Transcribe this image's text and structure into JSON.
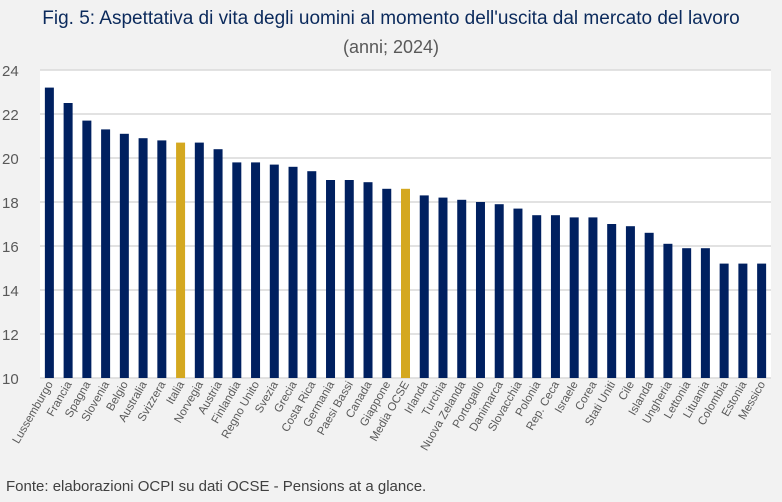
{
  "chart_data": {
    "type": "bar",
    "title": "Fig. 5: Aspettativa di vita degli uomini al momento dell'uscita dal mercato del lavoro",
    "subtitle": "(anni; 2024)",
    "xlabel": "",
    "ylabel": "",
    "ylim": [
      10,
      24
    ],
    "yticks": [
      "10",
      "12",
      "14",
      "16",
      "18",
      "20",
      "22",
      "24"
    ],
    "grid": true,
    "categories": [
      "Lussemburgo",
      "Francia",
      "Spagna",
      "Slovenia",
      "Belgio",
      "Australia",
      "Svizzera",
      "Italia",
      "Norvegia",
      "Austria",
      "Finlandia",
      "Regno Unito",
      "Svezia",
      "Grecia",
      "Costa Rica",
      "Germania",
      "Paesi Bassi",
      "Canada",
      "Giappone",
      "Media OCSE",
      "Irlanda",
      "Turchia",
      "Nuova Zelanda",
      "Portogallo",
      "Danimarca",
      "Slovacchia",
      "Polonia",
      "Rep. Ceca",
      "Israele",
      "Corea",
      "Stati Uniti",
      "Cile",
      "Islanda",
      "Ungheria",
      "Lettonia",
      "Lituania",
      "Colombia",
      "Estonia",
      "Messico"
    ],
    "values": [
      23.2,
      22.5,
      21.7,
      21.3,
      21.1,
      20.9,
      20.8,
      20.7,
      20.7,
      20.4,
      19.8,
      19.8,
      19.7,
      19.6,
      19.4,
      19.0,
      19.0,
      18.9,
      18.6,
      18.6,
      18.3,
      18.2,
      18.1,
      18.0,
      17.9,
      17.7,
      17.4,
      17.4,
      17.3,
      17.3,
      17.0,
      16.9,
      16.6,
      16.1,
      15.9,
      15.9,
      15.2,
      15.2,
      15.2
    ],
    "highlight": [
      "Italia",
      "Media OCSE"
    ],
    "colors": {
      "default": "#002060",
      "highlight": "#d4a820",
      "grid": "#d9d9d9"
    }
  },
  "source": "Fonte: elaborazioni OCPI su dati OCSE - Pensions at a glance."
}
